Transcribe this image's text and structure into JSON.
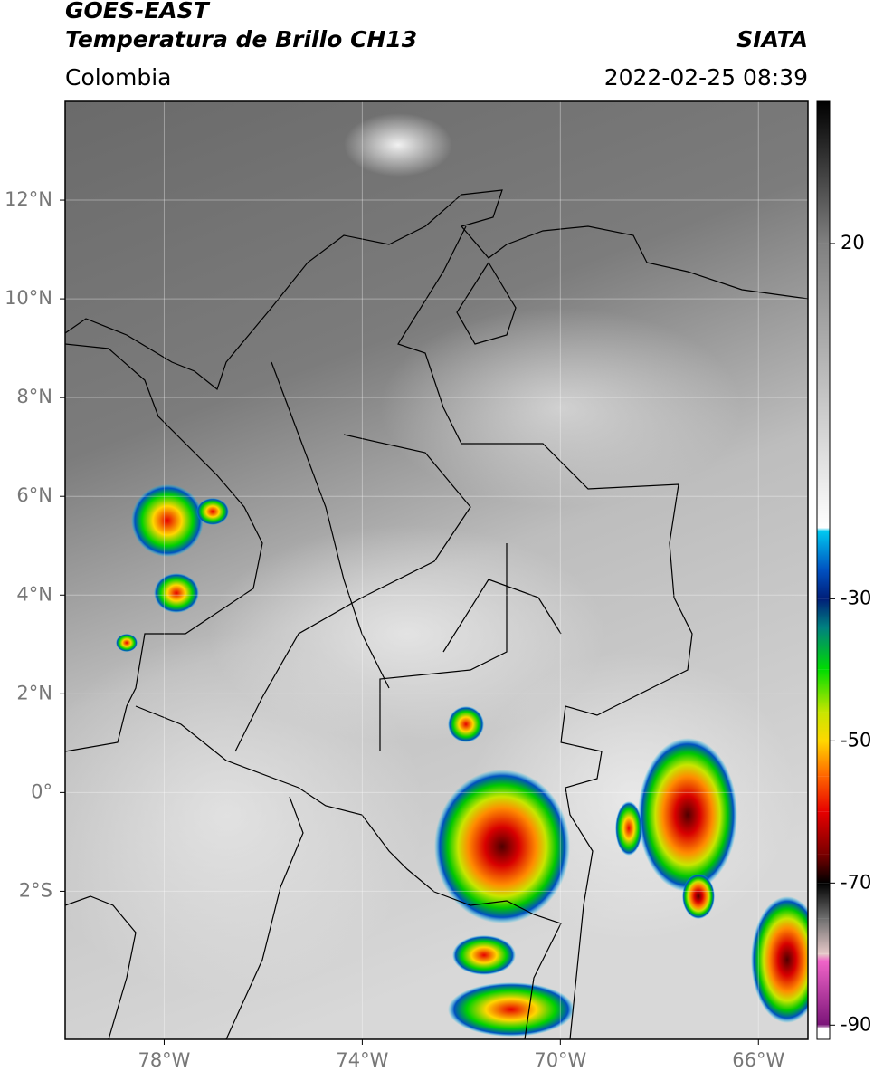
{
  "header": {
    "satellite": "GOES-EAST",
    "product": "Temperatura de Brillo CH13",
    "region": "Colombia",
    "source": "SIATA",
    "datetime": "2022-02-25 08:39"
  },
  "map": {
    "xlim": [
      -80,
      -65
    ],
    "ylim": [
      -5,
      14
    ],
    "xticks": [
      {
        "value": -78,
        "label": "78°W"
      },
      {
        "value": -74,
        "label": "74°W"
      },
      {
        "value": -70,
        "label": "70°W"
      },
      {
        "value": -66,
        "label": "66°W"
      }
    ],
    "yticks": [
      {
        "value": 12,
        "label": "12°N"
      },
      {
        "value": 10,
        "label": "10°N"
      },
      {
        "value": 8,
        "label": "8°N"
      },
      {
        "value": 6,
        "label": "6°N"
      },
      {
        "value": 4,
        "label": "4°N"
      },
      {
        "value": 2,
        "label": "2°N"
      },
      {
        "value": 0,
        "label": "0°"
      },
      {
        "value": -2,
        "label": "2°S"
      }
    ],
    "grid": true
  },
  "colorbar": {
    "lim": [
      -92,
      40
    ],
    "ticks": [
      20,
      -30,
      -50,
      -70,
      -90
    ],
    "stops": [
      {
        "value": 40,
        "color": "#000000"
      },
      {
        "value": 20,
        "color": "#808080"
      },
      {
        "value": -20,
        "color": "#ffffff"
      },
      {
        "value": -20.5,
        "color": "#00c8f0"
      },
      {
        "value": -26,
        "color": "#0050c0"
      },
      {
        "value": -30,
        "color": "#001e78"
      },
      {
        "value": -34,
        "color": "#008080"
      },
      {
        "value": -40,
        "color": "#00dc00"
      },
      {
        "value": -46,
        "color": "#c8e600"
      },
      {
        "value": -50,
        "color": "#ffd700"
      },
      {
        "value": -55,
        "color": "#ff6400"
      },
      {
        "value": -60,
        "color": "#e60000"
      },
      {
        "value": -66,
        "color": "#780000"
      },
      {
        "value": -70,
        "color": "#000000"
      },
      {
        "value": -75,
        "color": "#6e6e6e"
      },
      {
        "value": -80,
        "color": "#e6c8c8"
      },
      {
        "value": -81,
        "color": "#f064c8"
      },
      {
        "value": -90,
        "color": "#7a1478"
      },
      {
        "value": -90.5,
        "color": "#ffffff"
      },
      {
        "value": -92,
        "color": "#ffffff"
      }
    ]
  }
}
